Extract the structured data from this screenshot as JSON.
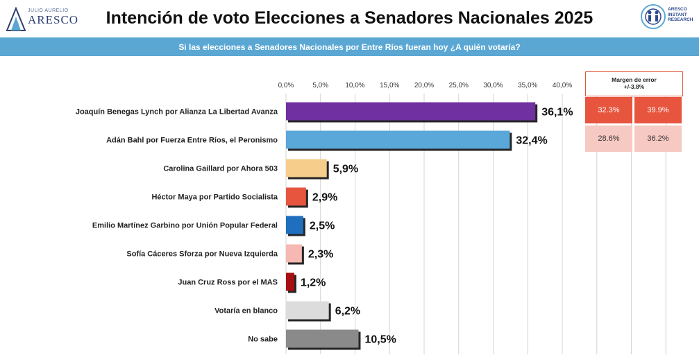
{
  "header": {
    "logo_left_small": "JULIO AURELIO",
    "logo_left_big": "ARESCO",
    "title": "Intención de voto Elecciones a Senadores Nacionales 2025",
    "logo_right_lines": [
      "ARESCO",
      "INSTANT",
      "RESEARCH"
    ]
  },
  "subtitle": "Si las elecciones a Senadores Nacionales por Entre Ríos fueran hoy ¿A quién votaría?",
  "margin_of_error": {
    "title_line1": "Margen de error",
    "title_line2": "+/-3.8%",
    "rows": [
      [
        "32.3%",
        "39.9%"
      ],
      [
        "28.6%",
        "36.2%"
      ]
    ],
    "colors": [
      "#e7553f",
      "#f7c9c3"
    ]
  },
  "chart_data": {
    "type": "bar",
    "orientation": "horizontal",
    "categories": [
      "Joaquín Benegas Lynch por Alianza La Libertad Avanza",
      "Adán Bahl por Fuerza Entre Ríos, el Peronismo",
      "Carolina Gaillard por Ahora 503",
      "Héctor Maya por Partido Socialista",
      "Emilio Martínez Garbino por Unión Popular Federal",
      "Sofía Cáceres Sforza por Nueva Izquierda",
      "Juan Cruz Ross por el MAS",
      "Votaría en blanco",
      "No sabe"
    ],
    "values": [
      36.1,
      32.4,
      5.9,
      2.9,
      2.5,
      2.3,
      1.2,
      6.2,
      10.5
    ],
    "value_labels": [
      "36,1%",
      "32,4%",
      "5,9%",
      "2,9%",
      "2,5%",
      "2,3%",
      "1,2%",
      "6,2%",
      "10,5%"
    ],
    "colors": [
      "#7030a0",
      "#5aa7d9",
      "#f6cd8a",
      "#e7553f",
      "#1f6fbf",
      "#f5b8b2",
      "#a80f12",
      "#dcdcdc",
      "#8a8a8a"
    ],
    "xlim": [
      0,
      40
    ],
    "xticks": [
      0,
      5,
      10,
      15,
      20,
      25,
      30,
      35,
      40
    ],
    "xtick_labels": [
      "0,0%",
      "5,0%",
      "10,0%",
      "15,0%",
      "20,0%",
      "25,0%",
      "30,0%",
      "35,0%",
      "40,0%"
    ],
    "grid": true,
    "legend": "none"
  }
}
